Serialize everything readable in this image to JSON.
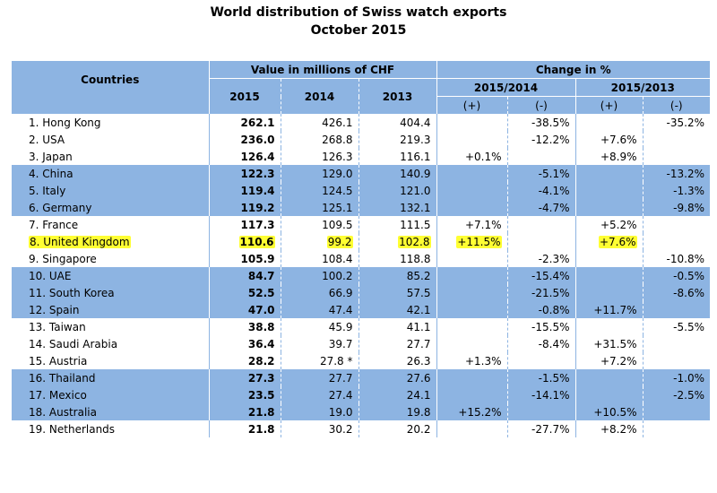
{
  "title": "World distribution of Swiss watch exports",
  "subtitle": "October 2015",
  "headers": {
    "countries": "Countries",
    "value": "Value in millions of CHF",
    "change": "Change in %",
    "y2015": "2015",
    "y2014": "2014",
    "y2013": "2013",
    "p1": "2015/2014",
    "p2": "2015/2013",
    "plus": "(+)",
    "minus": "(-)"
  },
  "highlight_color": "#FFFF33",
  "band_color": "#8DB4E2",
  "rows": [
    {
      "country": "1. Hong Kong",
      "v2015": "262.1",
      "v2014": "426.1",
      "v2013": "404.4",
      "p1_plus": "",
      "p1_minus": "-38.5%",
      "p2_plus": "",
      "p2_minus": "-35.2%",
      "band": false,
      "highlight": false
    },
    {
      "country": "2. USA",
      "v2015": "236.0",
      "v2014": "268.8",
      "v2013": "219.3",
      "p1_plus": "",
      "p1_minus": "-12.2%",
      "p2_plus": "+7.6%",
      "p2_minus": "",
      "band": false,
      "highlight": false
    },
    {
      "country": "3. Japan",
      "v2015": "126.4",
      "v2014": "126.3",
      "v2013": "116.1",
      "p1_plus": "+0.1%",
      "p1_minus": "",
      "p2_plus": "+8.9%",
      "p2_minus": "",
      "band": false,
      "highlight": false
    },
    {
      "country": "4. China",
      "v2015": "122.3",
      "v2014": "129.0",
      "v2013": "140.9",
      "p1_plus": "",
      "p1_minus": "-5.1%",
      "p2_plus": "",
      "p2_minus": "-13.2%",
      "band": true,
      "highlight": false
    },
    {
      "country": "5. Italy",
      "v2015": "119.4",
      "v2014": "124.5",
      "v2013": "121.0",
      "p1_plus": "",
      "p1_minus": "-4.1%",
      "p2_plus": "",
      "p2_minus": "-1.3%",
      "band": true,
      "highlight": false
    },
    {
      "country": "6. Germany",
      "v2015": "119.2",
      "v2014": "125.1",
      "v2013": "132.1",
      "p1_plus": "",
      "p1_minus": "-4.7%",
      "p2_plus": "",
      "p2_minus": "-9.8%",
      "band": true,
      "highlight": false
    },
    {
      "country": "7. France",
      "v2015": "117.3",
      "v2014": "109.5",
      "v2013": "111.5",
      "p1_plus": "+7.1%",
      "p1_minus": "",
      "p2_plus": "+5.2%",
      "p2_minus": "",
      "band": false,
      "highlight": false
    },
    {
      "country": "8. United Kingdom",
      "v2015": "110.6",
      "v2014": "99.2",
      "v2013": "102.8",
      "p1_plus": "+11.5%",
      "p1_minus": "",
      "p2_plus": "+7.6%",
      "p2_minus": "",
      "band": false,
      "highlight": true
    },
    {
      "country": "9. Singapore",
      "v2015": "105.9",
      "v2014": "108.4",
      "v2013": "118.8",
      "p1_plus": "",
      "p1_minus": "-2.3%",
      "p2_plus": "",
      "p2_minus": "-10.8%",
      "band": false,
      "highlight": false
    },
    {
      "country": "10. UAE",
      "v2015": "84.7",
      "v2014": "100.2",
      "v2013": "85.2",
      "p1_plus": "",
      "p1_minus": "-15.4%",
      "p2_plus": "",
      "p2_minus": "-0.5%",
      "band": true,
      "highlight": false
    },
    {
      "country": "11. South Korea",
      "v2015": "52.5",
      "v2014": "66.9",
      "v2013": "57.5",
      "p1_plus": "",
      "p1_minus": "-21.5%",
      "p2_plus": "",
      "p2_minus": "-8.6%",
      "band": true,
      "highlight": false
    },
    {
      "country": "12. Spain",
      "v2015": "47.0",
      "v2014": "47.4",
      "v2013": "42.1",
      "p1_plus": "",
      "p1_minus": "-0.8%",
      "p2_plus": "+11.7%",
      "p2_minus": "",
      "band": true,
      "highlight": false
    },
    {
      "country": "13. Taiwan",
      "v2015": "38.8",
      "v2014": "45.9",
      "v2013": "41.1",
      "p1_plus": "",
      "p1_minus": "-15.5%",
      "p2_plus": "",
      "p2_minus": "-5.5%",
      "band": false,
      "highlight": false
    },
    {
      "country": "14. Saudi Arabia",
      "v2015": "36.4",
      "v2014": "39.7",
      "v2013": "27.7",
      "p1_plus": "",
      "p1_minus": "-8.4%",
      "p2_plus": "+31.5%",
      "p2_minus": "",
      "band": false,
      "highlight": false
    },
    {
      "country": "15. Austria",
      "v2015": "28.2",
      "v2014": "27.8 *",
      "v2013": "26.3",
      "p1_plus": "+1.3%",
      "p1_minus": "",
      "p2_plus": "+7.2%",
      "p2_minus": "",
      "band": false,
      "highlight": false
    },
    {
      "country": "16. Thailand",
      "v2015": "27.3",
      "v2014": "27.7",
      "v2013": "27.6",
      "p1_plus": "",
      "p1_minus": "-1.5%",
      "p2_plus": "",
      "p2_minus": "-1.0%",
      "band": true,
      "highlight": false
    },
    {
      "country": "17. Mexico",
      "v2015": "23.5",
      "v2014": "27.4",
      "v2013": "24.1",
      "p1_plus": "",
      "p1_minus": "-14.1%",
      "p2_plus": "",
      "p2_minus": "-2.5%",
      "band": true,
      "highlight": false
    },
    {
      "country": "18. Australia",
      "v2015": "21.8",
      "v2014": "19.0",
      "v2013": "19.8",
      "p1_plus": "+15.2%",
      "p1_minus": "",
      "p2_plus": "+10.5%",
      "p2_minus": "",
      "band": true,
      "highlight": false
    },
    {
      "country": "19. Netherlands",
      "v2015": "21.8",
      "v2014": "30.2",
      "v2013": "20.2",
      "p1_plus": "",
      "p1_minus": "-27.7%",
      "p2_plus": "+8.2%",
      "p2_minus": "",
      "band": false,
      "highlight": false
    }
  ]
}
